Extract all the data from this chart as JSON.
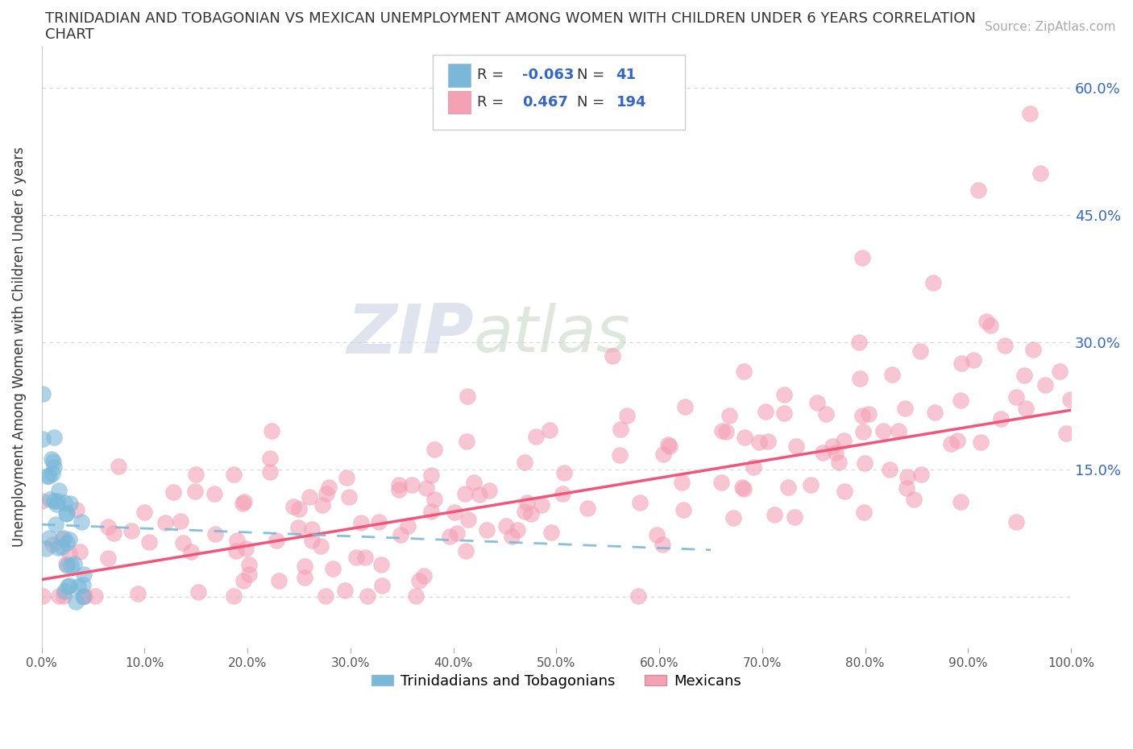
{
  "title_line1": "TRINIDADIAN AND TOBAGONIAN VS MEXICAN UNEMPLOYMENT AMONG WOMEN WITH CHILDREN UNDER 6 YEARS CORRELATION",
  "title_line2": "CHART",
  "source": "Source: ZipAtlas.com",
  "ylabel": "Unemployment Among Women with Children Under 6 years",
  "xlim": [
    0.0,
    1.0
  ],
  "ylim": [
    -0.06,
    0.65
  ],
  "xticks": [
    0.0,
    0.1,
    0.2,
    0.3,
    0.4,
    0.5,
    0.6,
    0.7,
    0.8,
    0.9,
    1.0
  ],
  "xticklabels": [
    "0.0%",
    "10.0%",
    "20.0%",
    "30.0%",
    "40.0%",
    "50.0%",
    "60.0%",
    "70.0%",
    "80.0%",
    "90.0%",
    "100.0%"
  ],
  "yticks": [
    0.0,
    0.15,
    0.3,
    0.45,
    0.6
  ],
  "yticklabels": [
    "",
    "15.0%",
    "30.0%",
    "45.0%",
    "60.0%"
  ],
  "blue_R": -0.063,
  "blue_N": 41,
  "pink_R": 0.467,
  "pink_N": 194,
  "blue_color": "#7ab8d9",
  "pink_color": "#f4a0b5",
  "blue_line_color": "#7ab8d9",
  "pink_line_color": "#f4547a",
  "legend_label_blue": "Trinidadians and Tobagonians",
  "legend_label_pink": "Mexicans",
  "watermark_zip": "ZIP",
  "watermark_atlas": "atlas",
  "background_color": "#ffffff",
  "grid_color": "#cccccc"
}
